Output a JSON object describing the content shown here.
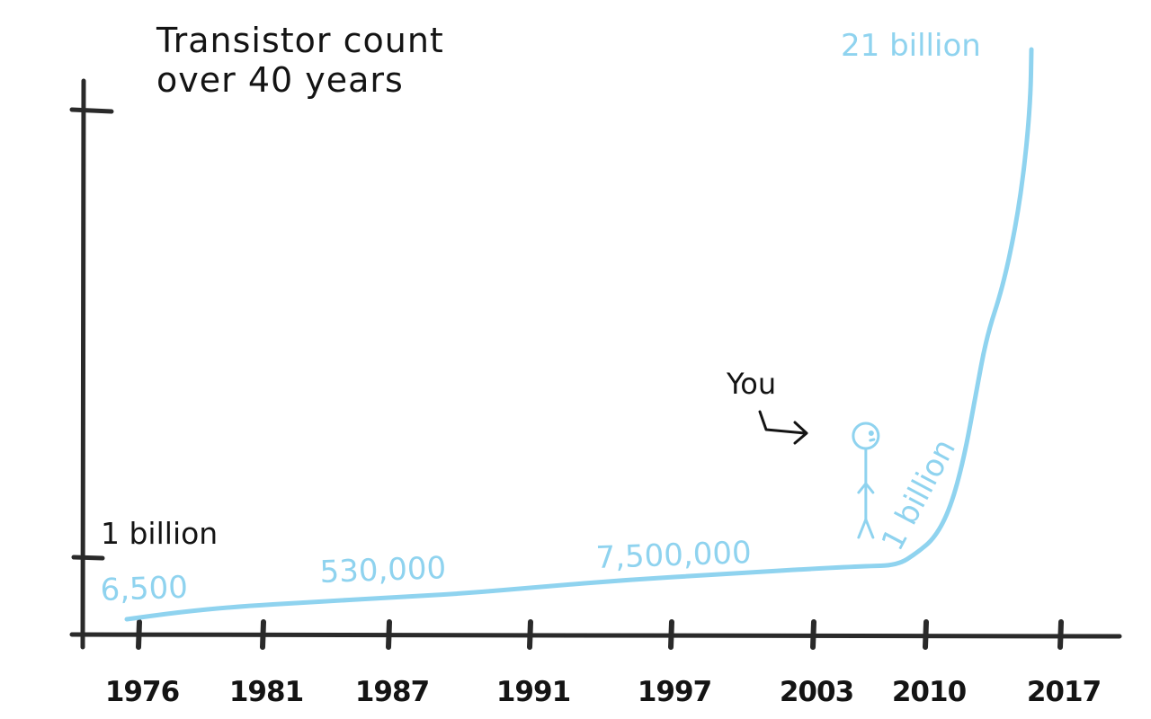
{
  "chart_data": {
    "type": "line",
    "title_lines": [
      "Transistor count",
      "over 40 years"
    ],
    "xlabel": "",
    "ylabel": "",
    "x_ticks": [
      "1976",
      "1981",
      "1987",
      "1991",
      "1997",
      "2003",
      "2010",
      "2017"
    ],
    "y_ticks": [
      "1 billion"
    ],
    "series": [
      {
        "color": "#8fd3ef",
        "points": [
          {
            "x": 1976,
            "label": "6,500"
          },
          {
            "x": 1984,
            "label": "530,000"
          },
          {
            "x": 1996,
            "label": "7,500,000"
          },
          {
            "x": 2009,
            "label": "1 billion"
          },
          {
            "x": 2015,
            "label": "21 billion"
          }
        ]
      }
    ],
    "annotations": [
      {
        "text": "You",
        "icon": "stick-figure-icon",
        "x": 2004
      }
    ],
    "grid": false,
    "legend": "none"
  },
  "colors": {
    "axis": "#2a2a2a",
    "series": "#8fd3ef",
    "text_dark": "#141414"
  }
}
